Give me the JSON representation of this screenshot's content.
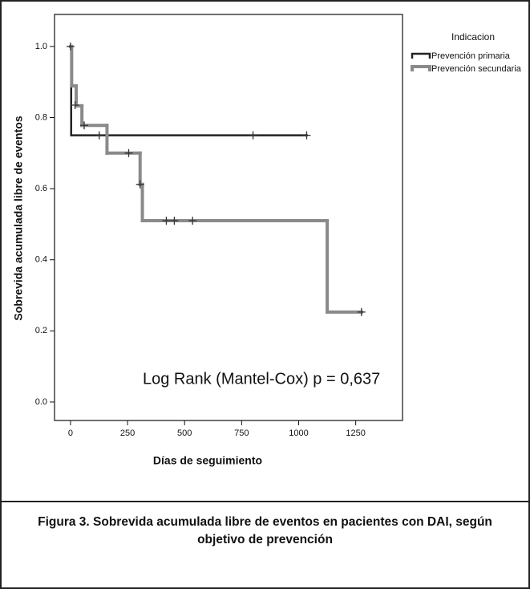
{
  "chart_data": {
    "type": "step",
    "y_label": "Sobrevida acumulada libre de eventos",
    "x_label": "Días de seguimiento",
    "annotation": "Log Rank (Mantel-Cox) p = 0,637",
    "legend_title": "Indicacion",
    "xlim": [
      -70,
      1455
    ],
    "ylim": [
      -0.052,
      1.09
    ],
    "xticks": [
      0,
      250,
      500,
      750,
      1000,
      1250
    ],
    "yticks": [
      {
        "value": 0,
        "label": "0.0"
      },
      0.2,
      0.4,
      0.6,
      0.8,
      {
        "value": 1,
        "label": "1.0"
      }
    ],
    "series": [
      {
        "name": "Prevención primaria",
        "color": "#222222",
        "x": [
          0,
          3,
          1035
        ],
        "values": [
          1,
          0.75,
          0.75
        ],
        "censor_x": [
          126,
          800,
          1035
        ],
        "censor_values": [
          0.75,
          0.75,
          0.75
        ]
      },
      {
        "name": "Prevención secundaria",
        "color": "#8a8a8a",
        "x": [
          0,
          5,
          25,
          50,
          160,
          305,
          315,
          1125,
          1275
        ],
        "values": [
          1,
          0.889,
          0.833,
          0.778,
          0.7,
          0.612,
          0.51,
          0.253,
          0.253
        ],
        "censor_x": [
          0,
          20,
          60,
          255,
          305,
          420,
          455,
          535,
          1275
        ],
        "censor_values": [
          1,
          0.835,
          0.778,
          0.7,
          0.612,
          0.51,
          0.51,
          0.51,
          0.253
        ]
      }
    ]
  },
  "caption": "Figura 3. Sobrevida acumulada libre de eventos en pacientes con DAI, según objetivo de prevención"
}
